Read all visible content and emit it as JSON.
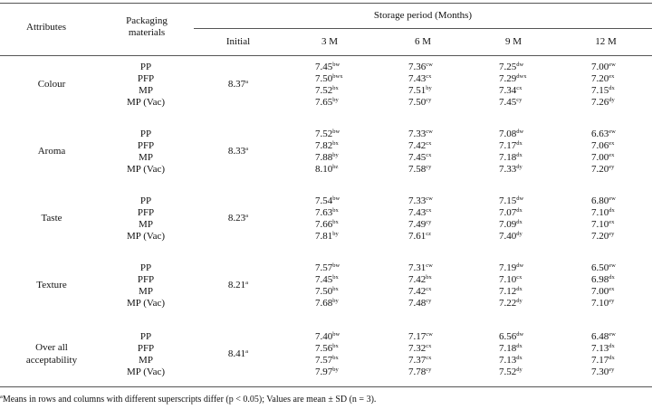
{
  "header": {
    "attributes": "Attributes",
    "packaging_line1": "Packaging",
    "packaging_line2": "materials",
    "storage_period": "Storage period (Months)",
    "initial": "Initial",
    "months": [
      "3 M",
      "6 M",
      "9 M",
      "12 M"
    ]
  },
  "groups": [
    {
      "attribute": [
        "Colour"
      ],
      "initial": {
        "v": "8.37",
        "s": "a"
      },
      "rows": [
        {
          "pkg": "PP",
          "cells": [
            [
              "7.45",
              "bw"
            ],
            [
              "7.36",
              "cw"
            ],
            [
              "7.25",
              "dw"
            ],
            [
              "7.00",
              "ew"
            ]
          ]
        },
        {
          "pkg": "PFP",
          "cells": [
            [
              "7.50",
              "bwx"
            ],
            [
              "7.43",
              "cx"
            ],
            [
              "7.29",
              "dwx"
            ],
            [
              "7.20",
              "ex"
            ]
          ]
        },
        {
          "pkg": "MP",
          "cells": [
            [
              "7.52",
              "bx"
            ],
            [
              "7.51",
              "by"
            ],
            [
              "7.34",
              "cx"
            ],
            [
              "7.15",
              "dx"
            ]
          ]
        },
        {
          "pkg": "MP (Vac)",
          "cells": [
            [
              "7.65",
              "by"
            ],
            [
              "7.50",
              "cy"
            ],
            [
              "7.45",
              "cy"
            ],
            [
              "7.26",
              "dy"
            ]
          ]
        }
      ]
    },
    {
      "attribute": [
        "Aroma"
      ],
      "initial": {
        "v": "8.33",
        "s": "a"
      },
      "rows": [
        {
          "pkg": "PP",
          "cells": [
            [
              "7.52",
              "bw"
            ],
            [
              "7.33",
              "cw"
            ],
            [
              "7.08",
              "dw"
            ],
            [
              "6.63",
              "ew"
            ]
          ]
        },
        {
          "pkg": "PFP",
          "cells": [
            [
              "7.82",
              "bx"
            ],
            [
              "7.42",
              "cx"
            ],
            [
              "7.17",
              "dx"
            ],
            [
              "7.06",
              "ex"
            ]
          ]
        },
        {
          "pkg": "MP",
          "cells": [
            [
              "7.88",
              "by"
            ],
            [
              "7.45",
              "cx"
            ],
            [
              "7.18",
              "dx"
            ],
            [
              "7.00",
              "ex"
            ]
          ]
        },
        {
          "pkg": "MP (Vac)",
          "cells": [
            [
              "8.10",
              "bz"
            ],
            [
              "7.58",
              "cy"
            ],
            [
              "7.33",
              "dy"
            ],
            [
              "7.20",
              "ey"
            ]
          ]
        }
      ]
    },
    {
      "attribute": [
        "Taste"
      ],
      "initial": {
        "v": "8.23",
        "s": "a"
      },
      "rows": [
        {
          "pkg": "PP",
          "cells": [
            [
              "7.54",
              "bw"
            ],
            [
              "7.33",
              "cw"
            ],
            [
              "7.15",
              "dw"
            ],
            [
              "6.80",
              "ew"
            ]
          ]
        },
        {
          "pkg": "PFP",
          "cells": [
            [
              "7.63",
              "bx"
            ],
            [
              "7.43",
              "cx"
            ],
            [
              "7.07",
              "dx"
            ],
            [
              "7.10",
              "dx"
            ]
          ]
        },
        {
          "pkg": "MP",
          "cells": [
            [
              "7.66",
              "bx"
            ],
            [
              "7.49",
              "cy"
            ],
            [
              "7.09",
              "dx"
            ],
            [
              "7.10",
              "ex"
            ]
          ]
        },
        {
          "pkg": "MP (Vac)",
          "cells": [
            [
              "7.81",
              "by"
            ],
            [
              "7.61",
              "cz"
            ],
            [
              "7.40",
              "dy"
            ],
            [
              "7.20",
              "ey"
            ]
          ]
        }
      ]
    },
    {
      "attribute": [
        "Texture"
      ],
      "initial": {
        "v": "8.21",
        "s": "a"
      },
      "rows": [
        {
          "pkg": "PP",
          "cells": [
            [
              "7.57",
              "bw"
            ],
            [
              "7.31",
              "cw"
            ],
            [
              "7.19",
              "dw"
            ],
            [
              "6.50",
              "ew"
            ]
          ]
        },
        {
          "pkg": "PFP",
          "cells": [
            [
              "7.45",
              "bx"
            ],
            [
              "7.42",
              "bx"
            ],
            [
              "7.10",
              "cx"
            ],
            [
              "6.98",
              "dx"
            ]
          ]
        },
        {
          "pkg": "MP",
          "cells": [
            [
              "7.50",
              "bx"
            ],
            [
              "7.42",
              "cx"
            ],
            [
              "7.12",
              "dx"
            ],
            [
              "7.00",
              "ex"
            ]
          ]
        },
        {
          "pkg": "MP (Vac)",
          "cells": [
            [
              "7.68",
              "by"
            ],
            [
              "7.48",
              "cy"
            ],
            [
              "7.22",
              "dy"
            ],
            [
              "7.10",
              "ey"
            ]
          ]
        }
      ]
    },
    {
      "attribute": [
        "Over all",
        "acceptability"
      ],
      "initial": {
        "v": "8.41",
        "s": "a"
      },
      "rows": [
        {
          "pkg": "PP",
          "cells": [
            [
              "7.40",
              "bw"
            ],
            [
              "7.17",
              "cw"
            ],
            [
              "6.56",
              "dw"
            ],
            [
              "6.48",
              "ew"
            ]
          ]
        },
        {
          "pkg": "PFP",
          "cells": [
            [
              "7.56",
              "bx"
            ],
            [
              "7.32",
              "cx"
            ],
            [
              "7.18",
              "dx"
            ],
            [
              "7.13",
              "dx"
            ]
          ]
        },
        {
          "pkg": "MP",
          "cells": [
            [
              "7.57",
              "bx"
            ],
            [
              "7.37",
              "cx"
            ],
            [
              "7.13",
              "dx"
            ],
            [
              "7.17",
              "dx"
            ]
          ]
        },
        {
          "pkg": "MP (Vac)",
          "cells": [
            [
              "7.97",
              "by"
            ],
            [
              "7.78",
              "cy"
            ],
            [
              "7.52",
              "dy"
            ],
            [
              "7.30",
              "ey"
            ]
          ]
        }
      ]
    }
  ],
  "footnote": {
    "mark": "a",
    "text": "Means in rows and columns with different superscripts differ (p < 0.05); Values are mean ± SD (n = 3)."
  }
}
